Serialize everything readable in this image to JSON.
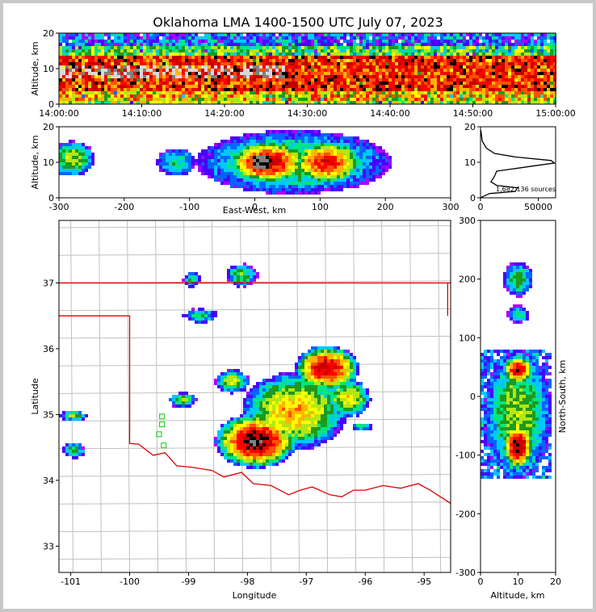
{
  "title": "Oklahoma LMA 1400-1500 UTC July 07, 2023",
  "colors": {
    "density": [
      "#ffffff",
      "#a800ff",
      "#4a00ff",
      "#0066ff",
      "#00c8ff",
      "#00e680",
      "#1e9a1e",
      "#b4e614",
      "#ffff00",
      "#ffb400",
      "#ff5000",
      "#ff0000",
      "#c80000",
      "#000000",
      "#808080",
      "#d8d8d8"
    ],
    "state_border": "#e00000",
    "county_line": "#c0c0c0",
    "stations": "#00cc00"
  },
  "chart_data": [
    {
      "id": "time-altitude",
      "type": "heatmap",
      "title": "",
      "xlabel": "",
      "ylabel": "Altitude, km",
      "xlim": [
        "14:00:00",
        "15:00:00"
      ],
      "ylim": [
        0,
        20
      ],
      "xticks": [
        "14:00:00",
        "14:10:00",
        "14:20:00",
        "14:30:00",
        "14:40:00",
        "14:50:00",
        "15:00:00"
      ],
      "yticks": [
        0,
        10,
        20
      ],
      "core_altitude_km": [
        4,
        14
      ]
    },
    {
      "id": "east-west-altitude",
      "type": "heatmap",
      "xlabel": "East-West, km",
      "ylabel": "Altitude, km",
      "xlim": [
        -300,
        300
      ],
      "ylim": [
        0,
        20
      ],
      "xticks": [
        -300,
        -200,
        -100,
        0,
        100,
        200,
        300
      ],
      "yticks": [
        0,
        10,
        20
      ]
    },
    {
      "id": "altitude-histogram",
      "type": "line",
      "xlim": [
        0,
        65000
      ],
      "ylim": [
        0,
        20
      ],
      "xticks": [
        0,
        50000
      ],
      "yticks": [
        0,
        10,
        20
      ],
      "annotation": "1,682,136 sources",
      "series": [
        {
          "x": [
            0,
            3000,
            8000,
            30000,
            32000,
            14000,
            9000,
            12000,
            14000,
            42000,
            64000,
            61000,
            30000,
            12000,
            5000,
            1500,
            300
          ],
          "y": [
            0,
            0.5,
            1.2,
            1.8,
            2.8,
            3.5,
            4.5,
            6.0,
            7.5,
            8.8,
            9.8,
            10.5,
            11.5,
            12.5,
            14.0,
            16.0,
            19.0
          ]
        }
      ]
    },
    {
      "id": "plan-view",
      "type": "heatmap",
      "xlabel": "Longitude",
      "ylabel": "Latitude",
      "xlim": [
        -101.2,
        -94.55
      ],
      "ylim": [
        32.6,
        37.95
      ],
      "xticks": [
        -101,
        -100,
        -99,
        -98,
        -97,
        -96,
        -95
      ],
      "yticks": [
        33,
        34,
        35,
        36,
        37
      ],
      "station_locations": [
        [
          -99.45,
          34.97
        ],
        [
          -99.5,
          34.7
        ],
        [
          -99.42,
          34.53
        ],
        [
          -99.45,
          34.85
        ]
      ],
      "cells": [
        {
          "lon": -97.85,
          "lat": 34.6,
          "rlon": 0.7,
          "rlat": 0.42,
          "peak": 13
        },
        {
          "lon": -96.65,
          "lat": 35.7,
          "rlon": 0.55,
          "rlat": 0.35,
          "peak": 12
        },
        {
          "lon": -97.2,
          "lat": 35.05,
          "rlon": 0.9,
          "rlat": 0.6,
          "peak": 9
        },
        {
          "lon": -96.3,
          "lat": 35.25,
          "rlon": 0.4,
          "rlat": 0.3,
          "peak": 8
        },
        {
          "lon": -98.25,
          "lat": 35.5,
          "rlon": 0.3,
          "rlat": 0.18,
          "peak": 7
        },
        {
          "lon": -99.1,
          "lat": 35.22,
          "rlon": 0.25,
          "rlat": 0.12,
          "peak": 6
        },
        {
          "lon": -100.95,
          "lat": 34.98,
          "rlon": 0.25,
          "rlat": 0.08,
          "peak": 6
        },
        {
          "lon": -100.95,
          "lat": 34.45,
          "rlon": 0.2,
          "rlat": 0.12,
          "peak": 6
        },
        {
          "lon": -98.1,
          "lat": 37.12,
          "rlon": 0.28,
          "rlat": 0.18,
          "peak": 6
        },
        {
          "lon": -98.8,
          "lat": 36.5,
          "rlon": 0.3,
          "rlat": 0.12,
          "peak": 5
        },
        {
          "lon": -98.95,
          "lat": 37.05,
          "rlon": 0.15,
          "rlat": 0.12,
          "peak": 5
        },
        {
          "lon": -96.05,
          "lat": 34.82,
          "rlon": 0.2,
          "rlat": 0.06,
          "peak": 6
        }
      ]
    },
    {
      "id": "altitude-north-south",
      "type": "heatmap",
      "xlabel": "Altitude, km",
      "ylabel": "North-South, km",
      "xlim": [
        0,
        20
      ],
      "ylim": [
        -300,
        300
      ],
      "xticks": [
        0,
        10,
        20
      ],
      "yticks": [
        -300,
        -200,
        -100,
        0,
        100,
        200,
        300
      ]
    }
  ]
}
